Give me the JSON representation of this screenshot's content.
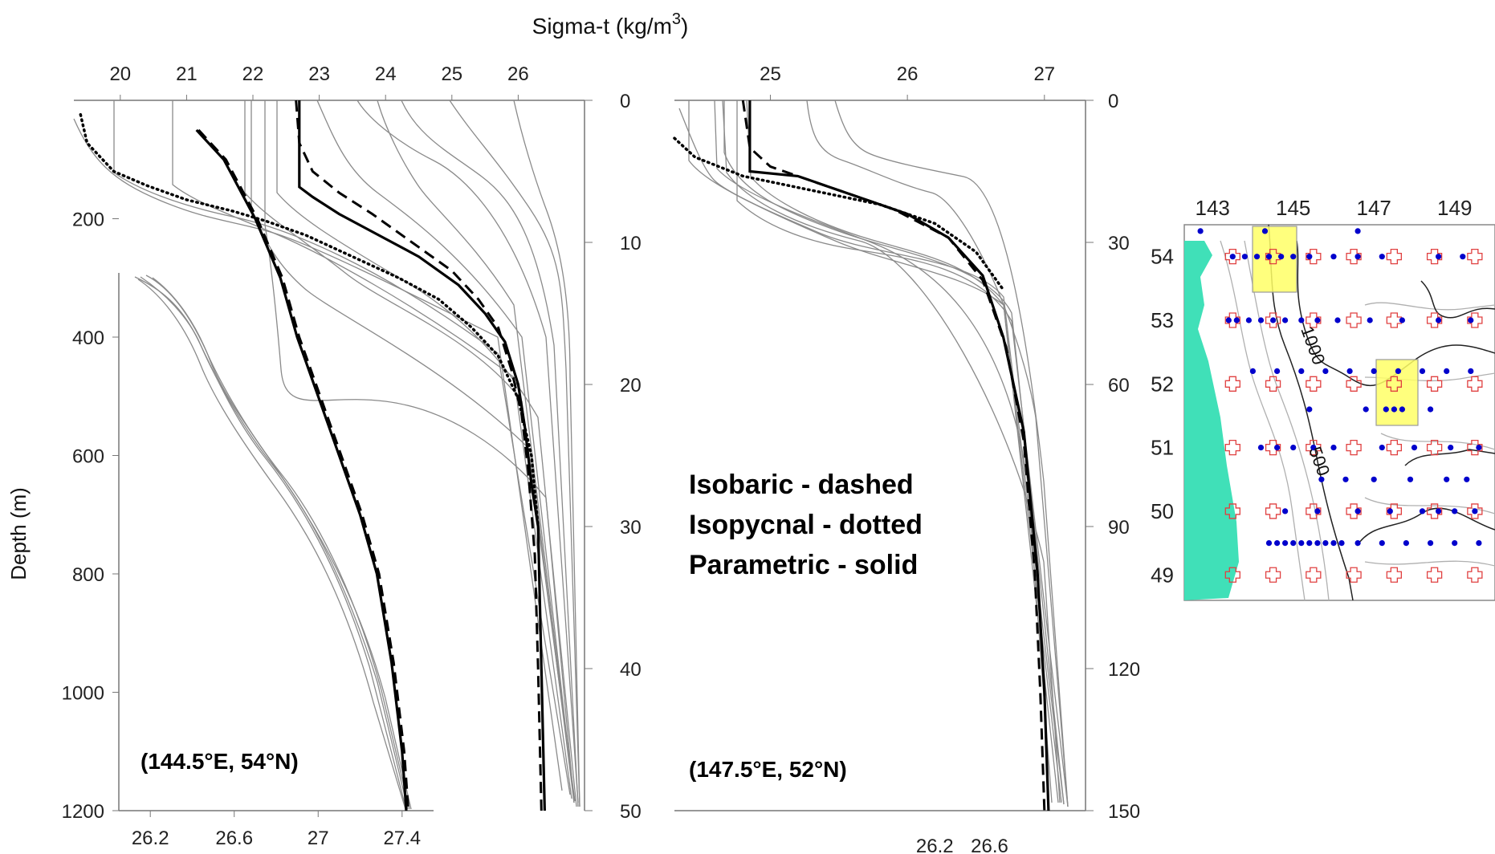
{
  "chart_data": [
    {
      "type": "line",
      "panel": "left-upper",
      "top_axis_title": "Sigma-t (kg/m",
      "top_axis_title_sup": "3",
      "top_axis_title_close": ")",
      "x_ticks": [
        "20",
        "21",
        "22",
        "23",
        "24",
        "25",
        "26"
      ],
      "xlim": [
        19.3,
        27.0
      ],
      "right_axis_ticks": [
        "0",
        "10",
        "20",
        "30",
        "40",
        "50"
      ],
      "ylim": [
        0,
        50
      ],
      "y_inverted": true,
      "series": [
        {
          "style": "solid-thick",
          "x": [
            22.7,
            22.7,
            22.7,
            22.9,
            23.3,
            23.9,
            24.5,
            25.1,
            25.5,
            25.8,
            26.0,
            26.1,
            26.2,
            26.3,
            26.35,
            26.4
          ],
          "y": [
            0,
            2,
            6.1,
            6.8,
            8,
            9.5,
            11,
            13,
            15,
            17,
            20,
            23,
            27,
            30,
            40,
            50
          ]
        },
        {
          "style": "dashed",
          "x": [
            22.65,
            22.7,
            22.9,
            23.3,
            23.8,
            24.4,
            25.0,
            25.4,
            25.7,
            25.9,
            26.05,
            26.15,
            26.25,
            26.3,
            26.35
          ],
          "y": [
            0,
            3,
            5,
            6.5,
            8,
            10,
            12,
            14,
            16,
            19,
            22,
            26,
            32,
            40,
            50
          ]
        },
        {
          "style": "dotted",
          "x": [
            19.4,
            19.5,
            19.9,
            20.4,
            21.0,
            21.7,
            22.2,
            22.8,
            23.5,
            24.2,
            24.8,
            25.3,
            25.7,
            26.0,
            26.2,
            26.3
          ],
          "y": [
            1,
            3,
            5,
            6,
            7,
            7.8,
            8.5,
            9.5,
            11,
            12.5,
            14,
            16,
            18,
            21,
            25,
            30
          ]
        }
      ]
    },
    {
      "type": "line",
      "panel": "left-lower",
      "x_ticks": [
        "26.2",
        "26.6",
        "27",
        "27.4"
      ],
      "xlim": [
        26.05,
        27.55
      ],
      "y_ticks": [
        "200",
        "400",
        "600",
        "800",
        "1000",
        "1200"
      ],
      "ylim": [
        0,
        1200
      ],
      "y_inverted": true,
      "ylabel": "Depth (m)",
      "series": [
        {
          "style": "solid-thick",
          "x": [
            26.42,
            26.55,
            26.7,
            26.82,
            26.9,
            27.0,
            27.1,
            27.2,
            27.28,
            27.35,
            27.4,
            27.42
          ],
          "y": [
            50,
            100,
            200,
            300,
            400,
            500,
            600,
            700,
            800,
            950,
            1100,
            1200
          ]
        },
        {
          "style": "dashed",
          "x": [
            26.43,
            26.56,
            26.71,
            26.83,
            26.91,
            27.01,
            27.11,
            27.21,
            27.29,
            27.36,
            27.41,
            27.43
          ],
          "y": [
            50,
            100,
            200,
            300,
            400,
            500,
            600,
            700,
            800,
            950,
            1100,
            1200
          ]
        }
      ]
    },
    {
      "type": "line",
      "panel": "middle",
      "x_ticks": [
        "25",
        "26",
        "27"
      ],
      "xlim": [
        24.3,
        27.3
      ],
      "right_axis_ticks": [
        "0",
        "30",
        "60",
        "90",
        "120",
        "150"
      ],
      "ylim": [
        0,
        150
      ],
      "y_inverted": true,
      "bottom_ticks": [
        "26.2",
        "26.6"
      ],
      "series": [
        {
          "style": "solid-thick",
          "x": [
            24.85,
            24.85,
            24.85,
            25.2,
            25.6,
            26.0,
            26.3,
            26.55,
            26.7,
            26.85,
            26.95,
            27.0,
            27.03
          ],
          "y": [
            0,
            10,
            15,
            16,
            20,
            24,
            29,
            37,
            50,
            70,
            100,
            125,
            150
          ]
        },
        {
          "style": "dashed",
          "x": [
            24.8,
            24.85,
            25.0,
            25.4,
            25.9,
            26.3,
            26.55,
            26.72,
            26.85,
            26.93,
            26.97,
            27.0
          ],
          "y": [
            0,
            10,
            14,
            18,
            23,
            29,
            38,
            52,
            72,
            100,
            125,
            150
          ]
        },
        {
          "style": "dotted",
          "x": [
            24.3,
            24.45,
            24.8,
            25.3,
            25.8,
            26.2,
            26.5,
            26.7
          ],
          "y": [
            8,
            12,
            16,
            19,
            22,
            26,
            32,
            40
          ]
        }
      ]
    }
  ],
  "legend": {
    "line1": "Isobaric - dashed",
    "line2": "Isopycnal - dotted",
    "line3": "Parametric - solid"
  },
  "locations": {
    "left": "(144.5°E, 54°N)",
    "middle": "(147.5°E, 52°N)"
  },
  "map": {
    "lon_ticks": [
      "143",
      "145",
      "147",
      "149"
    ],
    "lat_ticks": [
      "54",
      "53",
      "52",
      "51",
      "50",
      "49"
    ],
    "contour_labels": [
      "1000",
      "500"
    ],
    "colors": {
      "land": "#40e0b8",
      "highlight": "#ffff66",
      "station": "#0000cc",
      "cross": "#e04040"
    }
  }
}
